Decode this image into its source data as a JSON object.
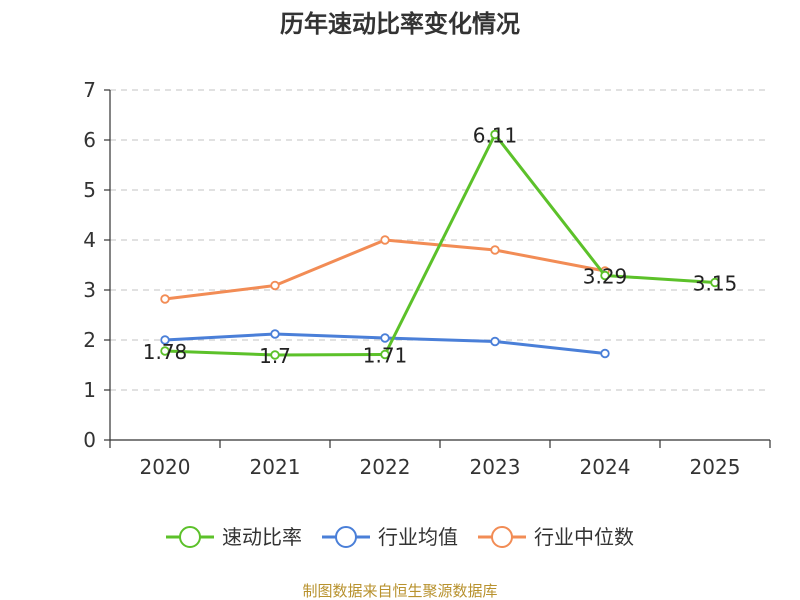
{
  "chart_data": {
    "type": "line",
    "title": "历年速动比率变化情况",
    "categories": [
      "2020",
      "2021",
      "2022",
      "2023",
      "2024",
      "2025"
    ],
    "ylim": [
      0,
      7
    ],
    "yticks": [
      "0",
      "1",
      "2",
      "3",
      "4",
      "5",
      "6",
      "7"
    ],
    "grid": true,
    "legend_position": "bottom",
    "series": [
      {
        "name": "速动比率",
        "color": "#5cc12a",
        "values": [
          1.78,
          1.7,
          1.71,
          6.11,
          3.29,
          3.15
        ],
        "labels": [
          "1.78",
          "1.7",
          "1.71",
          "6.11",
          "3.29",
          "3.15"
        ]
      },
      {
        "name": "行业均值",
        "color": "#4a7fd8",
        "values": [
          2.0,
          2.12,
          2.04,
          1.97,
          1.73,
          null
        ]
      },
      {
        "name": "行业中位数",
        "color": "#f28c55",
        "values": [
          2.82,
          3.09,
          4.0,
          3.8,
          3.38,
          null
        ]
      }
    ]
  },
  "footer": {
    "source": "制图数据来自恒生聚源数据库"
  }
}
